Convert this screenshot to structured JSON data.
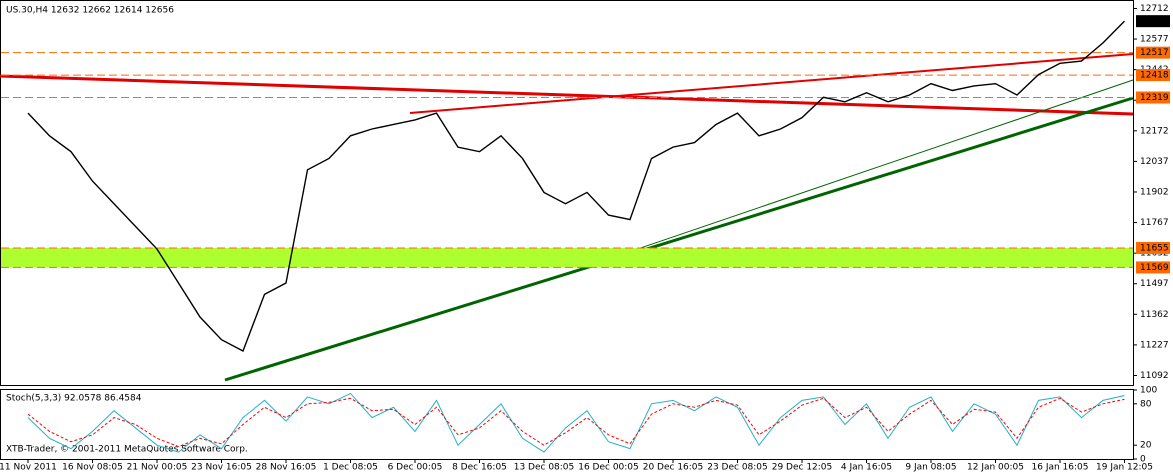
{
  "chart_data": [
    {
      "type": "line",
      "title": "US.30,H4  12632 12662 12614 12656",
      "categories": [
        "11 Nov 2011",
        null,
        null,
        "16 Nov 08:05",
        null,
        null,
        "21 Nov 00:05",
        null,
        null,
        "23 Nov 16:05",
        null,
        null,
        "28 Nov 16:05",
        null,
        null,
        "1 Dec 08:05",
        null,
        null,
        "6 Dec 00:05",
        null,
        null,
        "8 Dec 16:05",
        null,
        null,
        "13 Dec 08:05",
        null,
        null,
        "16 Dec 00:05",
        null,
        null,
        "20 Dec 16:05",
        null,
        null,
        "23 Dec 08:05",
        null,
        null,
        "29 Dec 12:05",
        null,
        null,
        "4 Jan 16:05",
        null,
        null,
        "9 Jan 08:05",
        null,
        null,
        "12 Jan 00:05",
        null,
        null,
        "16 Jan 16:05",
        null,
        null,
        "19 Jan 12:05"
      ],
      "series": [
        {
          "color": "#000000",
          "values": [
            12250,
            12150,
            12080,
            11950,
            11850,
            11750,
            11650,
            11500,
            11350,
            11250,
            11200,
            11450,
            11500,
            12000,
            12050,
            12150,
            12180,
            12200,
            12220,
            12250,
            12100,
            12080,
            12150,
            12050,
            11900,
            11850,
            11900,
            11800,
            11780,
            12050,
            12100,
            12120,
            12200,
            12250,
            12150,
            12180,
            12230,
            12320,
            12300,
            12340,
            12300,
            12330,
            12380,
            12350,
            12370,
            12380,
            12330,
            12420,
            12470,
            12480,
            12560,
            12656
          ]
        }
      ],
      "levels": {
        "values": [
          12517,
          12418,
          12319,
          11655,
          11569
        ],
        "color": "#ff6a00"
      },
      "band_color": "#adff2f",
      "ylim": [
        11050,
        12745
      ],
      "yticks": [
        12712,
        12577,
        12442,
        12307,
        12172,
        12037,
        11902,
        11767,
        11632,
        11497,
        11362,
        11227,
        11092
      ]
    },
    {
      "type": "line",
      "title": "Stoch(5,3,3) 92.0578 86.4584",
      "series": [
        {
          "color": "#20b2c8",
          "values": [
            60,
            30,
            15,
            40,
            70,
            45,
            20,
            10,
            35,
            15,
            60,
            85,
            55,
            90,
            80,
            95,
            60,
            75,
            40,
            85,
            20,
            50,
            80,
            30,
            10,
            45,
            70,
            25,
            15,
            80,
            85,
            70,
            90,
            75,
            20,
            60,
            85,
            90,
            50,
            80,
            30,
            75,
            90,
            40,
            80,
            65,
            20,
            85,
            90,
            60,
            85,
            92.0578
          ]
        },
        {
          "color": "#ff0000",
          "values": [
            65,
            40,
            25,
            35,
            60,
            50,
            30,
            18,
            30,
            22,
            50,
            75,
            60,
            80,
            82,
            88,
            70,
            72,
            50,
            75,
            35,
            45,
            70,
            40,
            20,
            38,
            60,
            35,
            22,
            65,
            80,
            75,
            85,
            78,
            35,
            55,
            78,
            88,
            60,
            75,
            40,
            65,
            85,
            50,
            72,
            68,
            30,
            75,
            88,
            68,
            80,
            86.4584
          ]
        }
      ],
      "ylim": [
        0,
        100
      ],
      "yticks": [
        100,
        80,
        20,
        0
      ]
    }
  ],
  "footer": "XTB-Trader, © 2001-2011 MetaQuotes Software Corp."
}
